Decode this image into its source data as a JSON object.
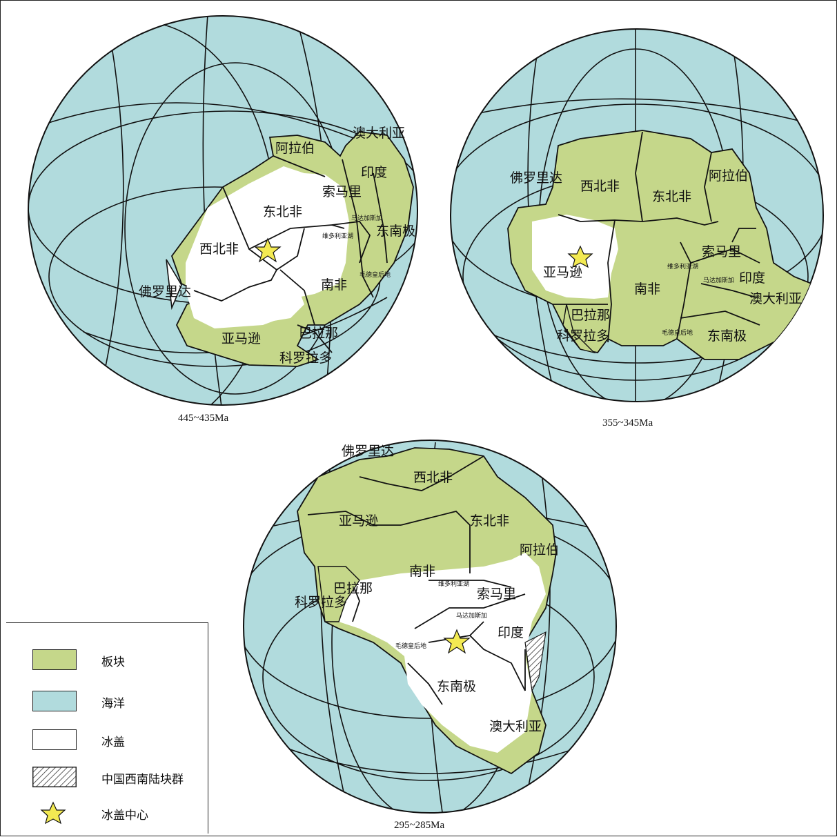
{
  "colors": {
    "plate": "#c5d78a",
    "ocean": "#b1dbdd",
    "ice": "#ffffff",
    "star": "#f3ea52",
    "line": "#111111"
  },
  "maps": [
    {
      "caption": "445~435Ma",
      "labels": {
        "aus": "澳大利亚",
        "ara": "阿拉伯",
        "ind": "印度",
        "som": "索马里",
        "nea": "东北非",
        "mad": "马达加斯加",
        "vic": "维多利亚湖",
        "ant": "东南极",
        "nwa": "西北非",
        "saf": "南非",
        "mau": "毛德皇后地",
        "flo": "佛罗里达",
        "ama": "亚马逊",
        "par": "巴拉那",
        "col": "科罗拉多"
      }
    },
    {
      "caption": "355~345Ma",
      "labels": {
        "flo": "佛罗里达",
        "nwa": "西北非",
        "nea": "东北非",
        "ara": "阿拉伯",
        "ama": "亚马逊",
        "saf": "南非",
        "som": "索马里",
        "vic": "维多利亚湖",
        "mad": "马达加斯加",
        "ind": "印度",
        "aus": "澳大利亚",
        "par": "巴拉那",
        "col": "科罗拉多",
        "mau": "毛德皇后地",
        "ant": "东南极"
      }
    },
    {
      "caption": "295~285Ma",
      "labels": {
        "flo": "佛罗里达",
        "nwa": "西北非",
        "ama": "亚马逊",
        "nea": "东北非",
        "ara": "阿拉伯",
        "saf": "南非",
        "vic": "维多利亚湖",
        "som": "索马里",
        "par": "巴拉那",
        "col": "科罗拉多",
        "mad": "马达加斯加",
        "mau": "毛德皇后地",
        "ind": "印度",
        "ant": "东南极",
        "aus": "澳大利亚"
      }
    }
  ],
  "legend": {
    "items": [
      {
        "label": "板块",
        "kind": "plate"
      },
      {
        "label": "海洋",
        "kind": "ocean"
      },
      {
        "label": "冰盖",
        "kind": "ice"
      },
      {
        "label": "中国西南陆块群",
        "kind": "hatch"
      },
      {
        "label": "冰盖中心",
        "kind": "star"
      }
    ]
  }
}
